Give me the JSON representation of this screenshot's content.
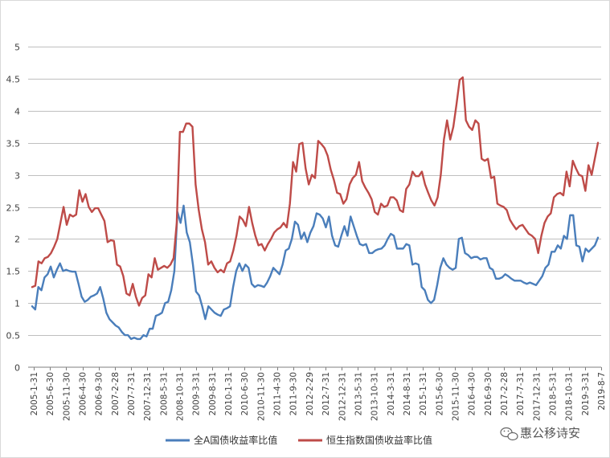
{
  "chart_data": {
    "type": "line",
    "title": "",
    "xlabel": "",
    "ylabel": "",
    "ylim": [
      0,
      5
    ],
    "yticks": [
      "0",
      "0.5",
      "1",
      "1.5",
      "2",
      "2.5",
      "3",
      "3.5",
      "4",
      "4.5",
      "5"
    ],
    "grid": true,
    "legend_position": "bottom",
    "x_tick_labels": [
      "2005-1-31",
      "2005-6-30",
      "2005-11-30",
      "2006-4-30",
      "2006-9-30",
      "2007-2-28",
      "2007-7-31",
      "2007-12-31",
      "2008-5-31",
      "2008-10-31",
      "2009-3-31",
      "2009-8-31",
      "2010-1-31",
      "2010-6-30",
      "2010-11-30",
      "2011-4-30",
      "2011-9-30",
      "2012-2-29",
      "2012-7-31",
      "2012-12-31",
      "2013-5-31",
      "2013-10-31",
      "2014-3-31",
      "2014-8-31",
      "2015-1-31",
      "2015-6-30",
      "2015-11-30",
      "2016-4-30",
      "2016-9-30",
      "2017-2-28",
      "2017-7-31",
      "2017-12-31",
      "2018-5-31",
      "2018-10-31",
      "2019-3-31",
      "2019-8-7"
    ],
    "series": [
      {
        "name": "全A国债收益率比值",
        "color": "#4a7ebb",
        "values": [
          0.95,
          0.9,
          1.25,
          1.2,
          1.4,
          1.45,
          1.57,
          1.4,
          1.52,
          1.62,
          1.5,
          1.52,
          1.5,
          1.49,
          1.49,
          1.3,
          1.1,
          1.02,
          1.05,
          1.1,
          1.12,
          1.15,
          1.25,
          1.07,
          0.85,
          0.75,
          0.7,
          0.65,
          0.62,
          0.55,
          0.5,
          0.5,
          0.44,
          0.46,
          0.44,
          0.44,
          0.5,
          0.48,
          0.6,
          0.6,
          0.8,
          0.82,
          0.85,
          1.0,
          1.02,
          1.2,
          1.5,
          2.42,
          2.25,
          2.52,
          2.1,
          1.95,
          1.6,
          1.18,
          1.12,
          0.95,
          0.75,
          0.95,
          0.9,
          0.85,
          0.82,
          0.8,
          0.9,
          0.92,
          0.95,
          1.25,
          1.5,
          1.62,
          1.5,
          1.6,
          1.55,
          1.3,
          1.25,
          1.28,
          1.27,
          1.25,
          1.32,
          1.42,
          1.55,
          1.5,
          1.45,
          1.6,
          1.82,
          1.85,
          2.0,
          2.27,
          2.22,
          2.0,
          2.1,
          1.95,
          2.1,
          2.2,
          2.4,
          2.38,
          2.32,
          2.18,
          2.35,
          2.05,
          1.9,
          1.88,
          2.05,
          2.2,
          2.05,
          2.35,
          2.2,
          2.05,
          1.92,
          1.9,
          1.92,
          1.78,
          1.78,
          1.82,
          1.84,
          1.85,
          1.9,
          2.0,
          2.08,
          2.05,
          1.85,
          1.85,
          1.85,
          1.92,
          1.9,
          1.6,
          1.62,
          1.6,
          1.25,
          1.2,
          1.05,
          1.0,
          1.05,
          1.28,
          1.55,
          1.7,
          1.6,
          1.55,
          1.52,
          1.55,
          2.0,
          2.02,
          1.78,
          1.75,
          1.7,
          1.72,
          1.72,
          1.68,
          1.7,
          1.7,
          1.55,
          1.52,
          1.38,
          1.38,
          1.4,
          1.45,
          1.42,
          1.38,
          1.35,
          1.35,
          1.35,
          1.32,
          1.3,
          1.32,
          1.3,
          1.28,
          1.35,
          1.42,
          1.55,
          1.6,
          1.8,
          1.8,
          1.9,
          1.85,
          2.05,
          2.0,
          2.37,
          2.37,
          1.9,
          1.88,
          1.65,
          1.85,
          1.8,
          1.85,
          1.9,
          2.02
        ]
      },
      {
        "name": "恒生指数国债收益率比值",
        "color": "#be4b48",
        "values": [
          1.25,
          1.27,
          1.65,
          1.62,
          1.7,
          1.72,
          1.78,
          1.88,
          2.0,
          2.25,
          2.5,
          2.22,
          2.38,
          2.35,
          2.38,
          2.76,
          2.58,
          2.7,
          2.5,
          2.42,
          2.48,
          2.48,
          2.38,
          2.28,
          1.95,
          1.98,
          1.97,
          1.6,
          1.57,
          1.42,
          1.15,
          1.12,
          1.3,
          1.1,
          0.96,
          1.08,
          1.12,
          1.45,
          1.4,
          1.7,
          1.52,
          1.55,
          1.58,
          1.55,
          1.6,
          1.7,
          2.25,
          3.67,
          3.67,
          3.8,
          3.8,
          3.75,
          2.85,
          2.45,
          2.15,
          1.95,
          1.6,
          1.65,
          1.55,
          1.48,
          1.52,
          1.48,
          1.62,
          1.65,
          1.82,
          2.05,
          2.35,
          2.3,
          2.2,
          2.5,
          2.25,
          2.05,
          1.9,
          1.92,
          1.82,
          1.92,
          2.0,
          2.1,
          2.15,
          2.18,
          2.25,
          2.18,
          2.55,
          3.2,
          3.05,
          3.48,
          3.5,
          3.1,
          2.85,
          3.0,
          2.95,
          3.53,
          3.48,
          3.42,
          3.3,
          3.08,
          2.92,
          2.72,
          2.7,
          2.55,
          2.62,
          2.85,
          2.95,
          3.0,
          3.2,
          2.9,
          2.8,
          2.72,
          2.62,
          2.42,
          2.38,
          2.55,
          2.5,
          2.52,
          2.65,
          2.65,
          2.6,
          2.45,
          2.42,
          2.78,
          2.85,
          3.05,
          2.98,
          2.98,
          3.05,
          2.85,
          2.72,
          2.6,
          2.52,
          2.65,
          3.0,
          3.55,
          3.85,
          3.55,
          3.75,
          4.1,
          4.48,
          4.52,
          3.85,
          3.75,
          3.7,
          3.85,
          3.8,
          3.25,
          3.22,
          3.25,
          2.95,
          2.97,
          2.55,
          2.52,
          2.5,
          2.45,
          2.3,
          2.22,
          2.15,
          2.2,
          2.22,
          2.15,
          2.08,
          2.05,
          2.0,
          1.78,
          2.05,
          2.25,
          2.35,
          2.4,
          2.65,
          2.7,
          2.72,
          2.68,
          3.05,
          2.82,
          3.22,
          3.1,
          3.0,
          2.98,
          2.75,
          3.15,
          3.0,
          3.25,
          3.5
        ]
      }
    ]
  },
  "watermark": {
    "logo_icon": "wechat-icon",
    "text": "惠公移诗安"
  }
}
